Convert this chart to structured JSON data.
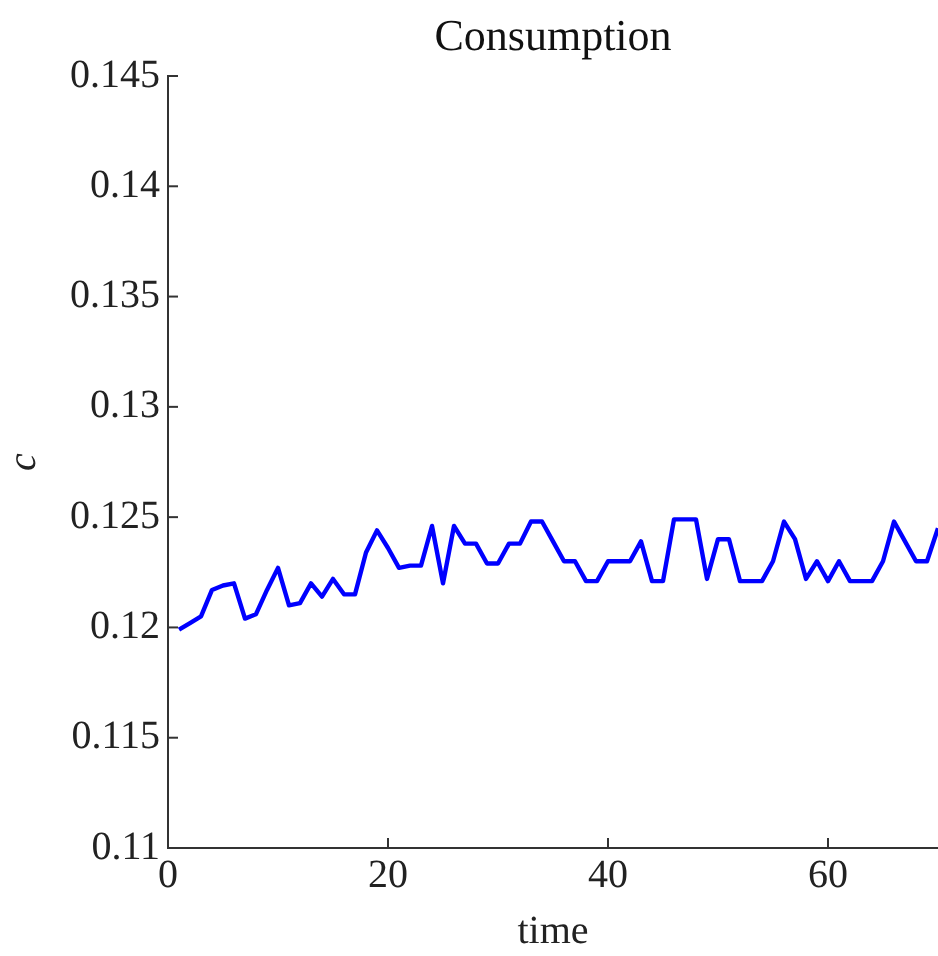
{
  "chart_data": {
    "type": "line",
    "title": "Consumption",
    "xlabel": "time",
    "ylabel": "c",
    "x": [
      1,
      2,
      3,
      4,
      5,
      6,
      7,
      8,
      9,
      10,
      11,
      12,
      13,
      14,
      15,
      16,
      17,
      18,
      19,
      20,
      21,
      22,
      23,
      24,
      25,
      26,
      27,
      28,
      29,
      30,
      31,
      32,
      33,
      34,
      35,
      36,
      37,
      38,
      39,
      40,
      41,
      42,
      43,
      44,
      45,
      46,
      47,
      48,
      49,
      50,
      51,
      52,
      53,
      54,
      55,
      56,
      57,
      58,
      59,
      60,
      61,
      62,
      63,
      64,
      65,
      66,
      67,
      68,
      69,
      70
    ],
    "series": [
      {
        "color": "#0000ff",
        "values": [
          0.1199,
          0.1202,
          0.1205,
          0.1217,
          0.1219,
          0.122,
          0.1204,
          0.1206,
          0.1217,
          0.1227,
          0.121,
          0.1211,
          0.122,
          0.1214,
          0.1222,
          0.1215,
          0.1215,
          0.1234,
          0.1244,
          0.1236,
          0.1227,
          0.1228,
          0.1228,
          0.1246,
          0.122,
          0.1246,
          0.1238,
          0.1238,
          0.1229,
          0.1229,
          0.1238,
          0.1238,
          0.1248,
          0.1248,
          0.1239,
          0.123,
          0.123,
          0.1221,
          0.1221,
          0.123,
          0.123,
          0.123,
          0.1239,
          0.1221,
          0.1221,
          0.1249,
          0.1249,
          0.1249,
          0.1222,
          0.124,
          0.124,
          0.1221,
          0.1221,
          0.1221,
          0.123,
          0.1248,
          0.124,
          0.1222,
          0.123,
          0.1221,
          0.123,
          0.1221,
          0.1221,
          0.1221,
          0.123,
          0.1248,
          0.1239,
          0.123,
          0.123,
          0.1245
        ]
      }
    ],
    "xlim": [
      0,
      70
    ],
    "xticks": [
      0,
      20,
      40,
      60
    ],
    "ylim": [
      0.11,
      0.145
    ],
    "yticks": [
      0.11,
      0.115,
      0.12,
      0.125,
      0.13,
      0.135,
      0.14,
      0.145
    ],
    "grid": false,
    "legend": false,
    "marker": "none",
    "line_style": "solid"
  }
}
